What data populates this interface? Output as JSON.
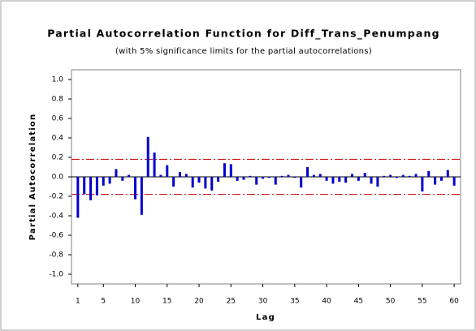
{
  "chart_data": {
    "type": "bar",
    "title": "Partial Autocorrelation Function for Diff_Trans_Penumpang",
    "subtitle": "(with 5% significance limits for the partial autocorrelations)",
    "xlabel": "Lag",
    "ylabel": "Partial Autocorrelation",
    "x": [
      1,
      2,
      3,
      4,
      5,
      6,
      7,
      8,
      9,
      10,
      11,
      12,
      13,
      14,
      15,
      16,
      17,
      18,
      19,
      20,
      21,
      22,
      23,
      24,
      25,
      26,
      27,
      28,
      29,
      30,
      31,
      32,
      33,
      34,
      35,
      36,
      37,
      38,
      39,
      40,
      41,
      42,
      43,
      44,
      45,
      46,
      47,
      48,
      49,
      50,
      51,
      52,
      53,
      54,
      55,
      56,
      57,
      58,
      59,
      60
    ],
    "values": [
      -0.42,
      -0.18,
      -0.24,
      -0.19,
      -0.09,
      -0.07,
      0.08,
      -0.04,
      0.02,
      -0.23,
      -0.39,
      0.41,
      0.25,
      0.02,
      0.12,
      -0.1,
      0.05,
      0.03,
      -0.11,
      -0.06,
      -0.12,
      -0.14,
      -0.05,
      0.14,
      0.13,
      -0.04,
      -0.03,
      0.01,
      -0.08,
      -0.02,
      -0.01,
      -0.08,
      0.01,
      0.02,
      -0.01,
      -0.11,
      0.1,
      0.02,
      0.03,
      -0.04,
      -0.07,
      -0.05,
      -0.06,
      0.03,
      -0.04,
      0.04,
      -0.07,
      -0.1,
      0.01,
      0.02,
      -0.01,
      0.02,
      0.01,
      0.03,
      -0.15,
      0.06,
      -0.08,
      -0.04,
      0.07,
      -0.09
    ],
    "color": "#0000cc",
    "significance_limits": {
      "upper": 0.18,
      "lower": -0.18,
      "color": "#cc0000"
    },
    "xlim": [
      0,
      61
    ],
    "xticks": [
      1,
      5,
      10,
      15,
      20,
      25,
      30,
      35,
      40,
      45,
      50,
      55,
      60
    ],
    "ylim": [
      -1.1,
      1.1
    ],
    "yticks": [
      {
        "value": 1,
        "label": "1.0"
      },
      0.8,
      0.6,
      0.4,
      0.2,
      {
        "value": 0,
        "label": "0.0"
      },
      -0.2,
      -0.4,
      -0.6,
      -0.8,
      {
        "value": -1,
        "label": "-1.0"
      }
    ]
  }
}
